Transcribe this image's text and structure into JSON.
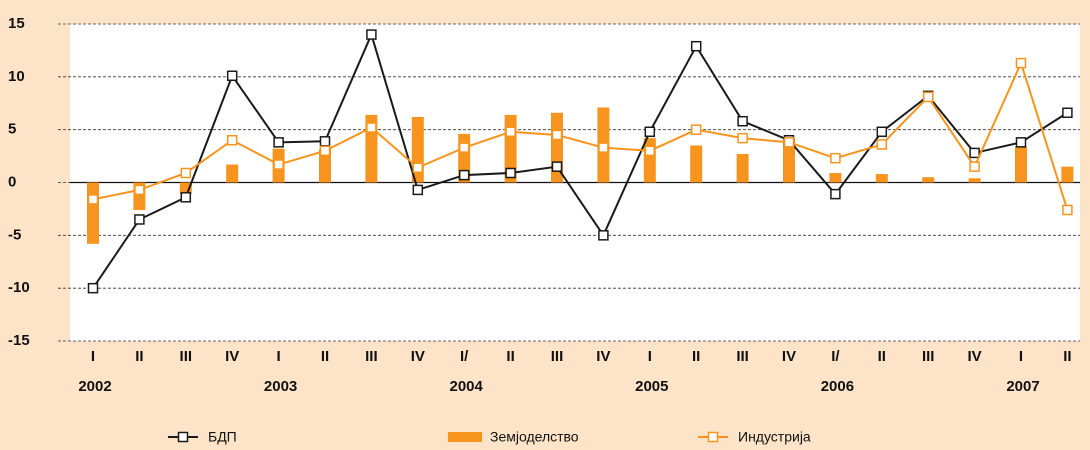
{
  "chart_data": {
    "type": "line",
    "categories": [
      "I",
      "II",
      "III",
      "IV",
      "I",
      "II",
      "III",
      "IV",
      "I/",
      "II",
      "III",
      "IV",
      "I",
      "II",
      "III",
      "IV",
      "I/",
      "II",
      "III",
      "IV",
      "I",
      "II"
    ],
    "years": [
      {
        "index": 0,
        "label": "2002"
      },
      {
        "index": 4,
        "label": "2003"
      },
      {
        "index": 8,
        "label": "2004"
      },
      {
        "index": 12,
        "label": "2005"
      },
      {
        "index": 16,
        "label": "2006"
      },
      {
        "index": 20,
        "label": "2007"
      }
    ],
    "series": [
      {
        "name": "БДП",
        "type": "line",
        "color": "#1a1a1a",
        "values": [
          -10,
          -3.5,
          -1.4,
          10.1,
          3.8,
          3.9,
          14,
          -0.7,
          0.7,
          0.9,
          1.5,
          -5,
          4.8,
          12.9,
          5.8,
          4,
          -1.1,
          4.8,
          8.2,
          2.8,
          3.8,
          6.6
        ]
      },
      {
        "name": "Земјоделство",
        "type": "bar",
        "color": "#f7941d",
        "values": [
          -5.8,
          -2.6,
          -1.1,
          1.7,
          3.2,
          3.2,
          6.4,
          6.2,
          4.6,
          6.4,
          6.6,
          7.1,
          4.2,
          3.5,
          2.7,
          4.2,
          0.9,
          0.8,
          0.5,
          0.4,
          3.4,
          1.5
        ]
      },
      {
        "name": "Индустрија",
        "type": "line",
        "color": "#f7941d",
        "values": [
          -1.6,
          -0.7,
          0.9,
          4.0,
          1.7,
          3.0,
          5.2,
          1.4,
          3.3,
          4.8,
          4.5,
          3.3,
          3.0,
          5.0,
          4.2,
          3.8,
          2.3,
          3.6,
          8.1,
          1.5,
          11.3,
          -2.6
        ]
      }
    ],
    "ylim": [
      -15,
      15
    ],
    "yticks": [
      -15,
      -10,
      -5,
      0,
      5,
      10,
      15
    ],
    "grid": true,
    "legend": "bottom"
  }
}
